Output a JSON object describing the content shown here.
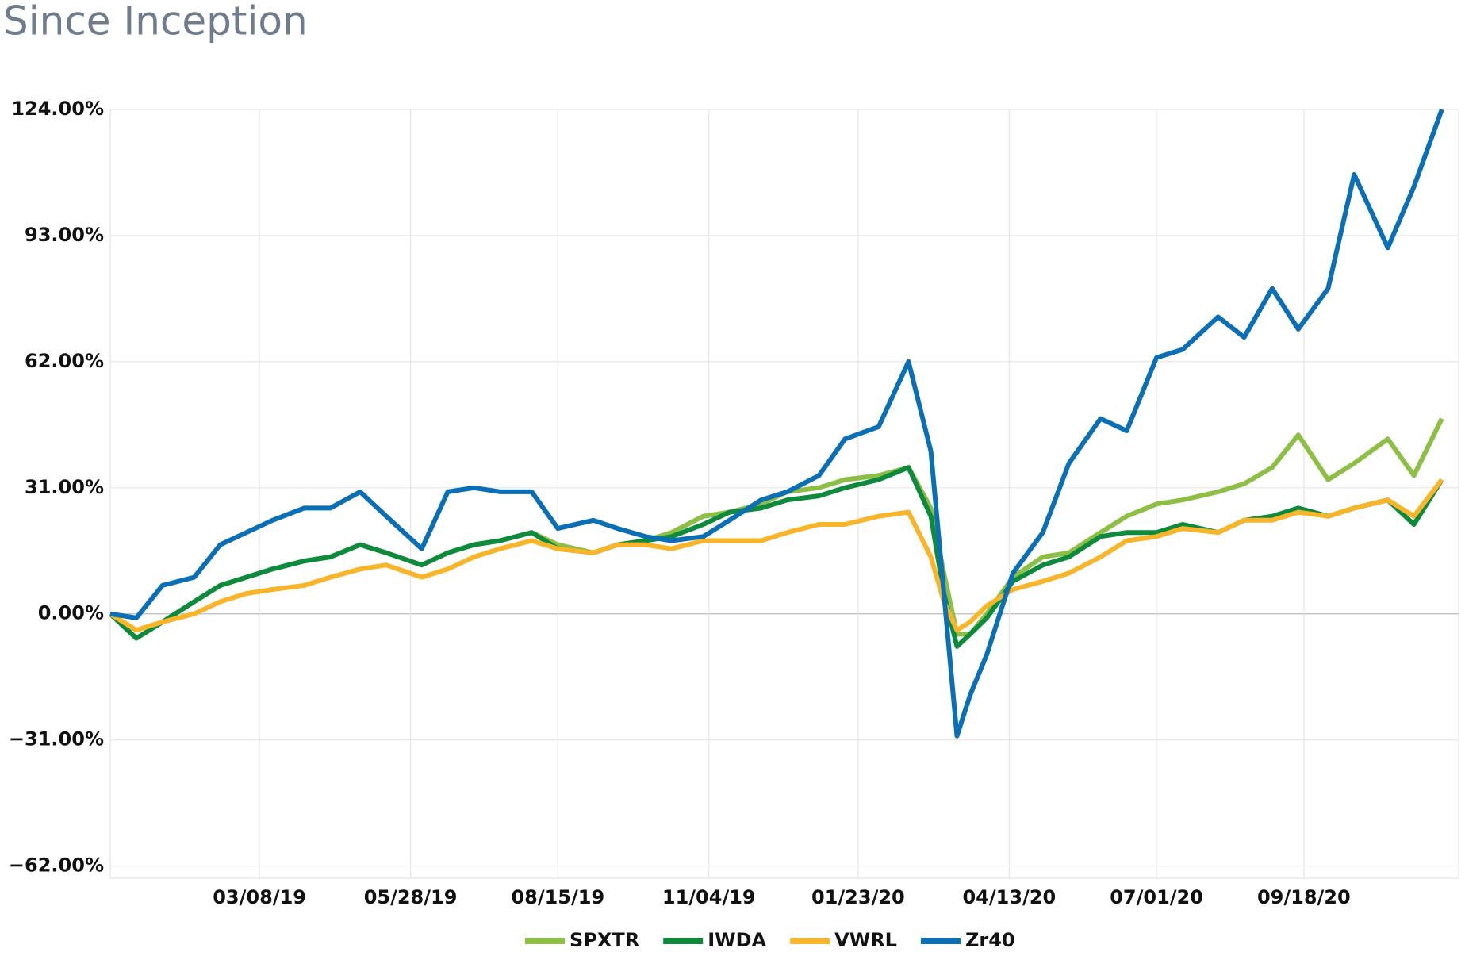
{
  "chart_data": {
    "type": "line",
    "title": "Since Inception",
    "x": [
      "12/18/18",
      "01/01/19",
      "01/15/19",
      "02/01/19",
      "02/15/19",
      "03/01/19",
      "03/15/19",
      "04/01/19",
      "04/15/19",
      "05/01/19",
      "05/15/19",
      "06/03/19",
      "06/17/19",
      "07/01/19",
      "07/15/19",
      "08/01/19",
      "08/15/19",
      "09/03/19",
      "09/16/19",
      "10/01/19",
      "10/15/19",
      "11/01/19",
      "11/15/19",
      "12/02/19",
      "12/16/19",
      "01/02/20",
      "01/16/20",
      "02/03/20",
      "02/19/20",
      "03/02/20",
      "03/09/20",
      "03/16/20",
      "03/23/20",
      "04/01/20",
      "04/15/20",
      "05/01/20",
      "05/15/20",
      "06/01/20",
      "06/15/20",
      "07/01/20",
      "07/15/20",
      "08/03/20",
      "08/17/20",
      "09/01/20",
      "09/15/20",
      "10/01/20",
      "10/15/20",
      "11/02/20",
      "11/16/20",
      "12/01/20"
    ],
    "series": [
      {
        "name": "SPXTR",
        "color": "#8dbf45",
        "values": [
          0,
          -6,
          -2,
          3,
          7,
          9,
          11,
          13,
          14,
          17,
          15,
          12,
          15,
          17,
          18,
          20,
          17,
          15,
          17,
          18,
          20,
          24,
          25,
          27,
          30,
          31,
          33,
          34,
          36,
          26,
          10,
          -5,
          -5,
          0,
          9,
          14,
          15,
          20,
          24,
          27,
          28,
          30,
          32,
          36,
          44,
          33,
          37,
          43,
          34,
          48
        ]
      },
      {
        "name": "IWDA",
        "color": "#0e8a3c",
        "values": [
          0,
          -6,
          -2,
          3,
          7,
          9,
          11,
          13,
          14,
          17,
          15,
          12,
          15,
          17,
          18,
          20,
          16,
          15,
          17,
          18,
          19,
          22,
          25,
          26,
          28,
          29,
          31,
          33,
          36,
          24,
          5,
          -8,
          -5,
          -1,
          8,
          12,
          14,
          19,
          20,
          20,
          22,
          20,
          23,
          24,
          26,
          24,
          26,
          28,
          22,
          33
        ]
      },
      {
        "name": "VWRL",
        "color": "#f9b52a",
        "values": [
          0,
          -4,
          -2,
          0,
          3,
          5,
          6,
          7,
          9,
          11,
          12,
          9,
          11,
          14,
          16,
          18,
          16,
          15,
          17,
          17,
          16,
          18,
          18,
          18,
          20,
          22,
          22,
          24,
          25,
          14,
          3,
          -4,
          -2,
          2,
          6,
          8,
          10,
          14,
          18,
          19,
          21,
          20,
          23,
          23,
          25,
          24,
          26,
          28,
          24,
          33
        ]
      },
      {
        "name": "Zr40",
        "color": "#0b6fb5",
        "values": [
          0,
          -1,
          7,
          9,
          17,
          20,
          23,
          26,
          26,
          30,
          24,
          16,
          30,
          31,
          30,
          30,
          21,
          23,
          21,
          19,
          18,
          19,
          23,
          28,
          30,
          34,
          43,
          46,
          62,
          40,
          5,
          -30,
          -20,
          -10,
          10,
          20,
          37,
          48,
          45,
          63,
          65,
          73,
          68,
          80,
          70,
          80,
          108,
          90,
          105,
          124
        ]
      }
    ],
    "xlim": [
      "12/18/18",
      "12/10/20"
    ],
    "xticks": [
      "03/08/19",
      "05/28/19",
      "08/15/19",
      "11/04/19",
      "01/23/20",
      "04/13/20",
      "07/01/20",
      "09/18/20"
    ],
    "ylim": [
      -65,
      124
    ],
    "yticks": [
      {
        "value": 124,
        "label": "124.00%"
      },
      {
        "value": 93,
        "label": "93.00%"
      },
      {
        "value": 62,
        "label": "62.00%"
      },
      {
        "value": 31,
        "label": "31.00%"
      },
      {
        "value": 0,
        "label": "0.00%"
      },
      {
        "value": -31,
        "label": "−31.00%"
      },
      {
        "value": -62,
        "label": "−62.00%"
      }
    ],
    "grid": true,
    "legend": "bottom"
  }
}
